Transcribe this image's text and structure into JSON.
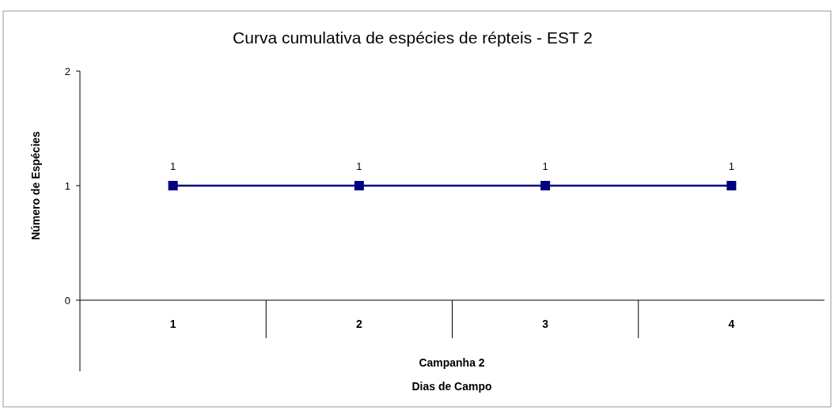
{
  "chart_data": {
    "type": "line",
    "title": "Curva cumulativa de espécies de répteis - EST 2",
    "xlabel": "Dias de Campo",
    "ylabel": "Número de Espécies",
    "annotations": [
      "Campanha 2"
    ],
    "categories": [
      "1",
      "2",
      "3",
      "4"
    ],
    "series": [
      {
        "color": "#000080",
        "values": [
          1,
          1,
          1,
          1
        ]
      }
    ],
    "ylim": [
      0,
      2
    ],
    "yticks": [
      0,
      1,
      2
    ],
    "marker": "square",
    "data_labels": true
  }
}
